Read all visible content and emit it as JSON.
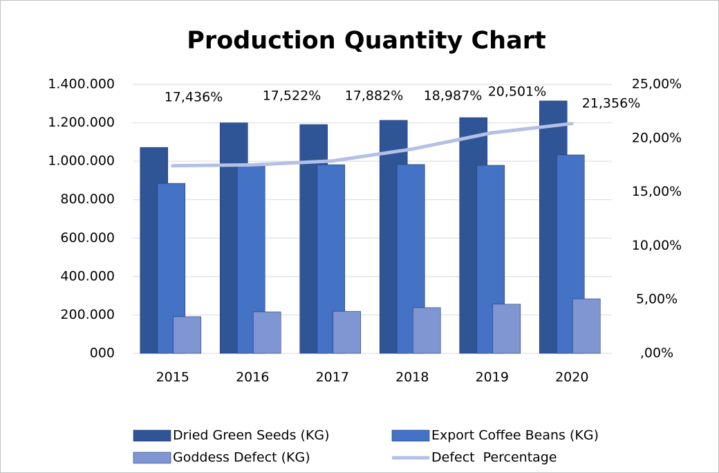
{
  "chart_data": {
    "type": "bar",
    "title": "Production Quantity Chart",
    "categories": [
      "2015",
      "2016",
      "2017",
      "2018",
      "2019",
      "2020"
    ],
    "series": [
      {
        "name": "Dried Green Seeds (KG)",
        "color": "#2f5597",
        "values": [
          1072000,
          1200000,
          1191000,
          1213000,
          1227000,
          1314000
        ]
      },
      {
        "name": "Export Coffee Beans (KG)",
        "color": "#4472c4",
        "values": [
          885000,
          980000,
          982000,
          983000,
          979000,
          1033000
        ]
      },
      {
        "name": "Goddess Defect (KG)",
        "color": "#7f96d2",
        "values": [
          191000,
          216000,
          219000,
          238000,
          256000,
          284000
        ]
      },
      {
        "name": "Defect  Percentage",
        "color": "#b4c0e4",
        "type": "line",
        "axis": "y2",
        "values": [
          17.436,
          17.522,
          17.882,
          18.987,
          20.501,
          21.356
        ],
        "value_labels": [
          "17,436%",
          "17,522%",
          "17,882%",
          "18,987%",
          "20,501%",
          "21,356%"
        ]
      }
    ],
    "ylim": [
      0,
      1400000
    ],
    "yticks": [
      {
        "value": 0,
        "label": "000"
      },
      {
        "value": 200000,
        "label": "200.000"
      },
      {
        "value": 400000,
        "label": "400.000"
      },
      {
        "value": 600000,
        "label": "600.000"
      },
      {
        "value": 800000,
        "label": "800.000"
      },
      {
        "value": 1000000,
        "label": "1.000.000"
      },
      {
        "value": 1200000,
        "label": "1.200.000"
      },
      {
        "value": 1400000,
        "label": "1.400.000"
      }
    ],
    "y2lim": [
      0,
      25
    ],
    "y2ticks": [
      {
        "value": 0,
        "label": ",00%"
      },
      {
        "value": 5,
        "label": "5,00%"
      },
      {
        "value": 10,
        "label": "10,00%"
      },
      {
        "value": 15,
        "label": "15,00%"
      },
      {
        "value": 20,
        "label": "20,00%"
      },
      {
        "value": 25,
        "label": "25,00%"
      }
    ],
    "grid": true,
    "legend": "bottom"
  }
}
